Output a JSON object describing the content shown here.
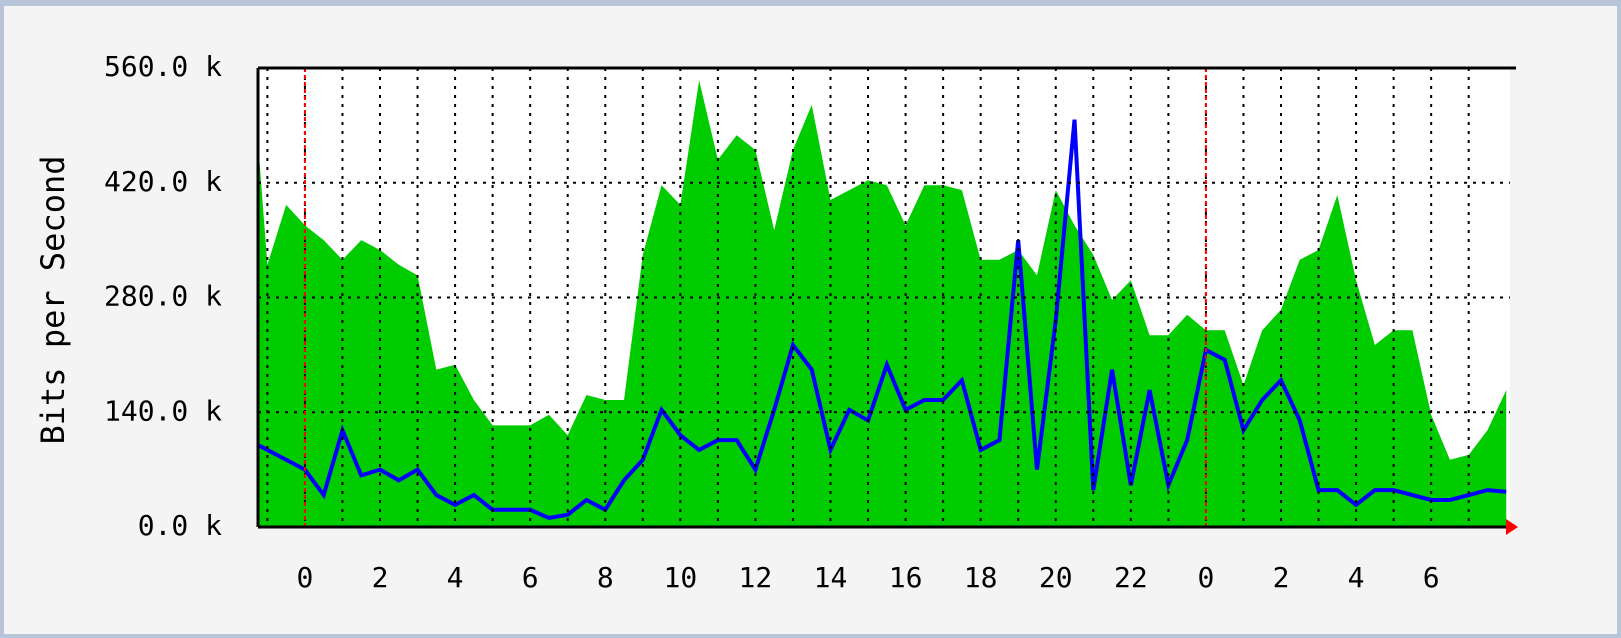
{
  "chart_data": {
    "type": "line",
    "ylabel": "Bits per Second",
    "xlim": [
      -1.25,
      32.1
    ],
    "ylim": [
      0,
      560
    ],
    "yticks": [
      {
        "value": 0,
        "label": "0.0 k"
      },
      {
        "value": 140,
        "label": "140.0 k"
      },
      {
        "value": 280,
        "label": "280.0 k"
      },
      {
        "value": 420,
        "label": "420.0 k"
      },
      {
        "value": 560,
        "label": "560.0 k"
      }
    ],
    "xticks": [
      0,
      2,
      4,
      6,
      8,
      10,
      12,
      14,
      16,
      18,
      20,
      22,
      {
        "value": 24,
        "label": "0"
      },
      {
        "value": 26,
        "label": "2"
      },
      {
        "value": 28,
        "label": "4"
      },
      {
        "value": 30,
        "label": "6"
      }
    ],
    "xminor": [
      -1,
      1,
      3,
      5,
      7,
      9,
      11,
      13,
      15,
      17,
      19,
      21,
      23,
      25,
      27,
      29,
      31
    ],
    "day_lines": [
      0,
      24
    ],
    "day_line_color": "#ff0000",
    "grid": true,
    "x": [
      -1.25,
      -1,
      -0.5,
      0,
      0.5,
      1,
      1.5,
      2,
      2.5,
      3,
      3.5,
      4,
      4.5,
      5,
      5.5,
      6,
      6.5,
      7,
      7.5,
      8,
      8.5,
      9,
      9.5,
      10,
      10.5,
      11,
      11.5,
      12,
      12.5,
      13,
      13.5,
      14,
      14.5,
      15,
      15.5,
      16,
      16.5,
      17,
      17.5,
      18,
      18.5,
      19,
      19.5,
      20,
      20.5,
      21,
      21.5,
      22,
      22.5,
      23,
      23.5,
      24,
      24.5,
      25,
      25.5,
      26,
      26.5,
      27,
      27.5,
      28,
      28.5,
      29,
      29.5,
      30,
      30.5,
      31,
      31.5,
      32
    ],
    "series": [
      {
        "kind": "area",
        "color": "#00cc00",
        "values": [
          470,
          320,
          393,
          368,
          350,
          326,
          350,
          338,
          320,
          307,
          192,
          198,
          155,
          124,
          124,
          124,
          137,
          112,
          161,
          155,
          155,
          332,
          417,
          393,
          545,
          448,
          478,
          460,
          362,
          460,
          515,
          399,
          411,
          423,
          417,
          368,
          417,
          417,
          411,
          326,
          326,
          338,
          307,
          411,
          368,
          332,
          277,
          301,
          234,
          234,
          259,
          240,
          240,
          173,
          240,
          265,
          326,
          338,
          405,
          301,
          222,
          240,
          240,
          137,
          82,
          88,
          118,
          167
        ]
      },
      {
        "kind": "line",
        "color": "#0000ff",
        "values": [
          100,
          94,
          82,
          70,
          39,
          118,
          63,
          70,
          57,
          70,
          39,
          27,
          39,
          21,
          21,
          21,
          11,
          15,
          33,
          21,
          57,
          82,
          143,
          112,
          94,
          106,
          106,
          70,
          143,
          222,
          192,
          94,
          143,
          130,
          198,
          143,
          155,
          155,
          179,
          94,
          106,
          350,
          70,
          252,
          497,
          45,
          192,
          51,
          167,
          51,
          106,
          216,
          204,
          118,
          155,
          179,
          130,
          45,
          45,
          27,
          45,
          45,
          39,
          33,
          33,
          39,
          45,
          43
        ]
      }
    ]
  }
}
